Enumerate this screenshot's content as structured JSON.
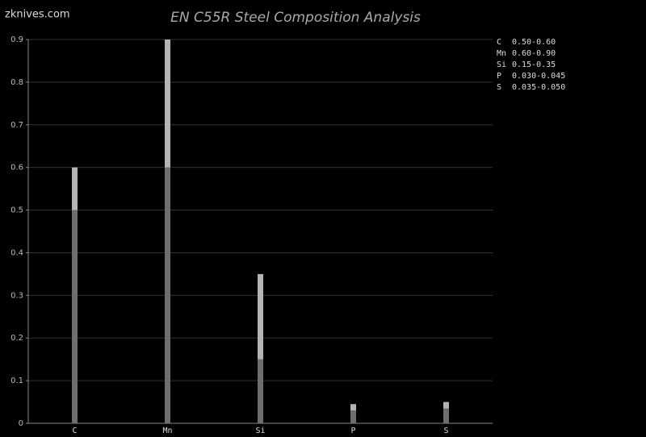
{
  "chart_data": {
    "type": "range_bar",
    "title": "EN C55R Steel Composition Analysis",
    "watermark": "zknives.com",
    "categories": [
      "C",
      "Mn",
      "Si",
      "P",
      "S"
    ],
    "series": [
      {
        "name": "min",
        "color": "#6e6e6e",
        "values": [
          0.5,
          0.6,
          0.15,
          0.03,
          0.035
        ]
      },
      {
        "name": "max",
        "color": "#b4b4b4",
        "values": [
          0.6,
          0.9,
          0.35,
          0.045,
          0.05
        ]
      }
    ],
    "range_labels": [
      "0.50-0.60",
      "0.60-0.90",
      "0.15-0.35",
      "0.030-0.045",
      "0.035-0.050"
    ],
    "ylim": [
      0,
      0.9
    ],
    "yticks": [
      0,
      0.1,
      0.2,
      0.3,
      0.4,
      0.5,
      0.6,
      0.7,
      0.8,
      0.9
    ],
    "grid": true
  }
}
